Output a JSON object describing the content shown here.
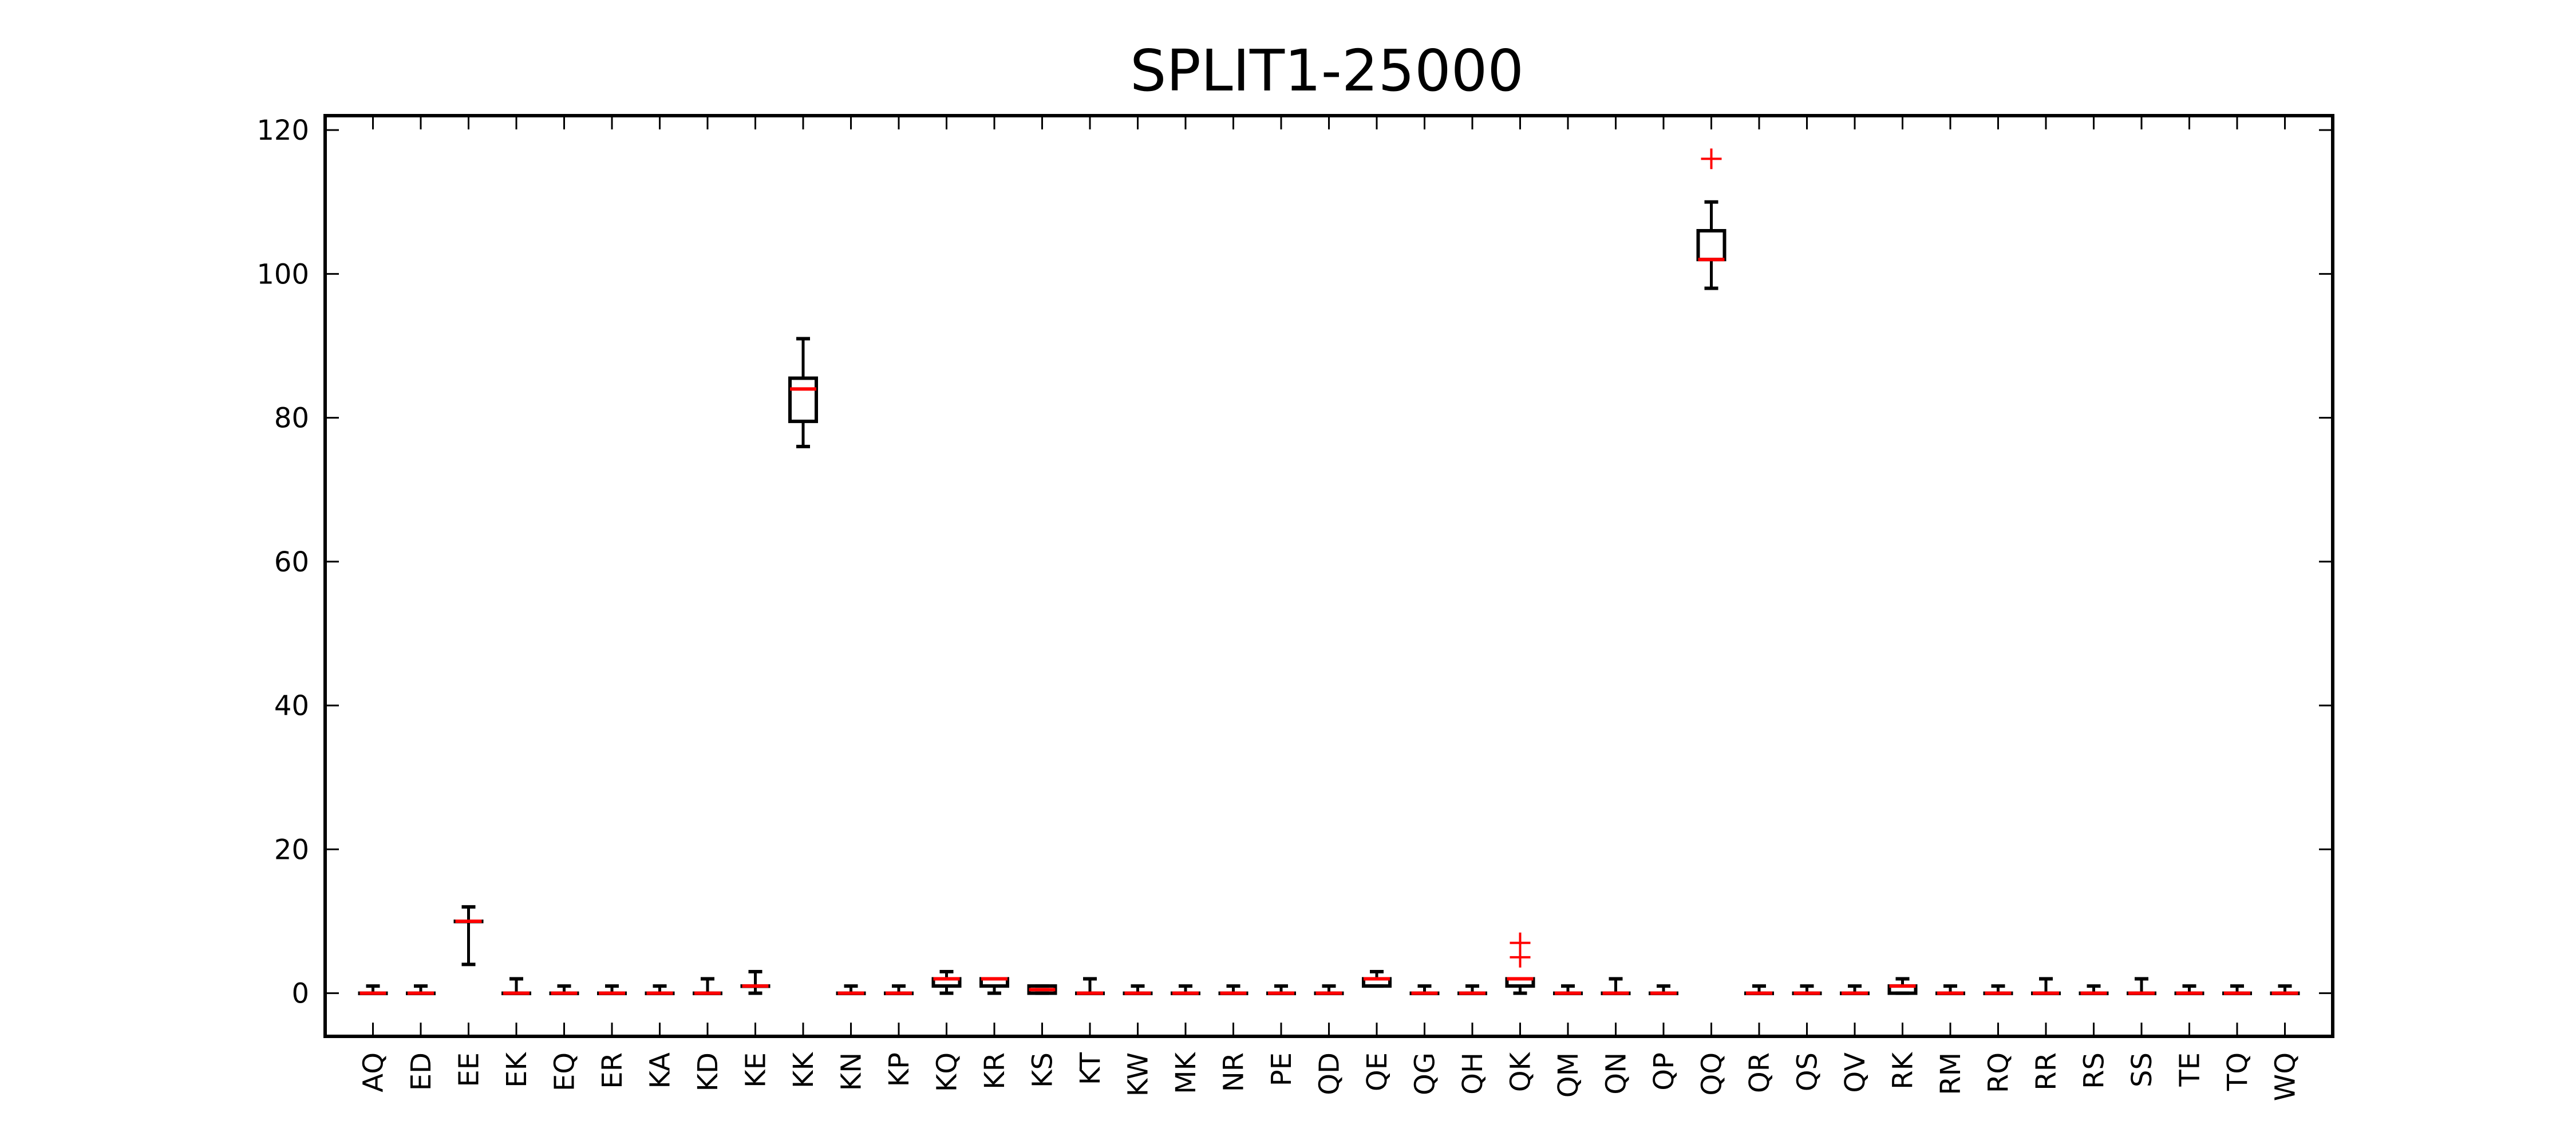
{
  "chart_data": {
    "type": "box",
    "title": "SPLIT1-25000",
    "xlabel": "",
    "ylabel": "",
    "ylim": [
      -6,
      122
    ],
    "yticks": [
      0,
      20,
      40,
      60,
      80,
      100,
      120
    ],
    "ytick_labels": [
      "0",
      "20",
      "40",
      "60",
      "80",
      "100",
      "120"
    ],
    "grid": false,
    "legend": "none",
    "colors": {
      "box": "#000000",
      "median": "#ff0000",
      "outlier": "#ff0000"
    },
    "categories": [
      "AQ",
      "ED",
      "EE",
      "EK",
      "EQ",
      "ER",
      "KA",
      "KD",
      "KE",
      "KK",
      "KN",
      "KP",
      "KQ",
      "KR",
      "KS",
      "KT",
      "KW",
      "MK",
      "NR",
      "PE",
      "QD",
      "QE",
      "QG",
      "QH",
      "QK",
      "QM",
      "QN",
      "QP",
      "QQ",
      "QR",
      "QS",
      "QV",
      "RK",
      "RM",
      "RQ",
      "RR",
      "RS",
      "SS",
      "TE",
      "TQ",
      "WQ"
    ],
    "boxes": [
      {
        "label": "AQ",
        "whislo": 0,
        "q1": 0,
        "med": 0,
        "q3": 0,
        "whishi": 1,
        "fliers": []
      },
      {
        "label": "ED",
        "whislo": 0,
        "q1": 0,
        "med": 0,
        "q3": 0,
        "whishi": 1,
        "fliers": []
      },
      {
        "label": "EE",
        "whislo": 4,
        "q1": 10,
        "med": 10,
        "q3": 10,
        "whishi": 12,
        "fliers": []
      },
      {
        "label": "EK",
        "whislo": 0,
        "q1": 0,
        "med": 0,
        "q3": 0,
        "whishi": 2,
        "fliers": []
      },
      {
        "label": "EQ",
        "whislo": 0,
        "q1": 0,
        "med": 0,
        "q3": 0,
        "whishi": 1,
        "fliers": []
      },
      {
        "label": "ER",
        "whislo": 0,
        "q1": 0,
        "med": 0,
        "q3": 0,
        "whishi": 1,
        "fliers": []
      },
      {
        "label": "KA",
        "whislo": 0,
        "q1": 0,
        "med": 0,
        "q3": 0,
        "whishi": 1,
        "fliers": []
      },
      {
        "label": "KD",
        "whislo": 0,
        "q1": 0,
        "med": 0,
        "q3": 0,
        "whishi": 2,
        "fliers": []
      },
      {
        "label": "KE",
        "whislo": 0,
        "q1": 1,
        "med": 1,
        "q3": 1,
        "whishi": 3,
        "fliers": []
      },
      {
        "label": "KK",
        "whislo": 76,
        "q1": 79.5,
        "med": 84,
        "q3": 85.5,
        "whishi": 91,
        "fliers": []
      },
      {
        "label": "KN",
        "whislo": 0,
        "q1": 0,
        "med": 0,
        "q3": 0,
        "whishi": 1,
        "fliers": []
      },
      {
        "label": "KP",
        "whislo": 0,
        "q1": 0,
        "med": 0,
        "q3": 0,
        "whishi": 1,
        "fliers": []
      },
      {
        "label": "KQ",
        "whislo": 0,
        "q1": 1,
        "med": 2,
        "q3": 2,
        "whishi": 3,
        "fliers": []
      },
      {
        "label": "KR",
        "whislo": 0,
        "q1": 1,
        "med": 2,
        "q3": 2,
        "whishi": 2,
        "fliers": []
      },
      {
        "label": "KS",
        "whislo": 0,
        "q1": 0,
        "med": 0.5,
        "q3": 1,
        "whishi": 1,
        "fliers": []
      },
      {
        "label": "KT",
        "whislo": 0,
        "q1": 0,
        "med": 0,
        "q3": 0,
        "whishi": 2,
        "fliers": []
      },
      {
        "label": "KW",
        "whislo": 0,
        "q1": 0,
        "med": 0,
        "q3": 0,
        "whishi": 1,
        "fliers": []
      },
      {
        "label": "MK",
        "whislo": 0,
        "q1": 0,
        "med": 0,
        "q3": 0,
        "whishi": 1,
        "fliers": []
      },
      {
        "label": "NR",
        "whislo": 0,
        "q1": 0,
        "med": 0,
        "q3": 0,
        "whishi": 1,
        "fliers": []
      },
      {
        "label": "PE",
        "whislo": 0,
        "q1": 0,
        "med": 0,
        "q3": 0,
        "whishi": 1,
        "fliers": []
      },
      {
        "label": "QD",
        "whislo": 0,
        "q1": 0,
        "med": 0,
        "q3": 0,
        "whishi": 1,
        "fliers": []
      },
      {
        "label": "QE",
        "whislo": 1,
        "q1": 1,
        "med": 2,
        "q3": 2,
        "whishi": 3,
        "fliers": []
      },
      {
        "label": "QG",
        "whislo": 0,
        "q1": 0,
        "med": 0,
        "q3": 0,
        "whishi": 1,
        "fliers": []
      },
      {
        "label": "QH",
        "whislo": 0,
        "q1": 0,
        "med": 0,
        "q3": 0,
        "whishi": 1,
        "fliers": []
      },
      {
        "label": "QK",
        "whislo": 0,
        "q1": 1,
        "med": 2,
        "q3": 2,
        "whishi": 2,
        "fliers": [
          5,
          7
        ]
      },
      {
        "label": "QM",
        "whislo": 0,
        "q1": 0,
        "med": 0,
        "q3": 0,
        "whishi": 1,
        "fliers": []
      },
      {
        "label": "QN",
        "whislo": 0,
        "q1": 0,
        "med": 0,
        "q3": 0,
        "whishi": 2,
        "fliers": []
      },
      {
        "label": "QP",
        "whislo": 0,
        "q1": 0,
        "med": 0,
        "q3": 0,
        "whishi": 1,
        "fliers": []
      },
      {
        "label": "QQ",
        "whislo": 98,
        "q1": 102,
        "med": 102,
        "q3": 106,
        "whishi": 110,
        "fliers": [
          116
        ]
      },
      {
        "label": "QR",
        "whislo": 0,
        "q1": 0,
        "med": 0,
        "q3": 0,
        "whishi": 1,
        "fliers": []
      },
      {
        "label": "QS",
        "whislo": 0,
        "q1": 0,
        "med": 0,
        "q3": 0,
        "whishi": 1,
        "fliers": []
      },
      {
        "label": "QV",
        "whislo": 0,
        "q1": 0,
        "med": 0,
        "q3": 0,
        "whishi": 1,
        "fliers": []
      },
      {
        "label": "RK",
        "whislo": 0,
        "q1": 0,
        "med": 1,
        "q3": 1,
        "whishi": 2,
        "fliers": []
      },
      {
        "label": "RM",
        "whislo": 0,
        "q1": 0,
        "med": 0,
        "q3": 0,
        "whishi": 1,
        "fliers": []
      },
      {
        "label": "RQ",
        "whislo": 0,
        "q1": 0,
        "med": 0,
        "q3": 0,
        "whishi": 1,
        "fliers": []
      },
      {
        "label": "RR",
        "whislo": 0,
        "q1": 0,
        "med": 0,
        "q3": 0,
        "whishi": 2,
        "fliers": []
      },
      {
        "label": "RS",
        "whislo": 0,
        "q1": 0,
        "med": 0,
        "q3": 0,
        "whishi": 1,
        "fliers": []
      },
      {
        "label": "SS",
        "whislo": 0,
        "q1": 0,
        "med": 0,
        "q3": 0,
        "whishi": 2,
        "fliers": []
      },
      {
        "label": "TE",
        "whislo": 0,
        "q1": 0,
        "med": 0,
        "q3": 0,
        "whishi": 1,
        "fliers": []
      },
      {
        "label": "TQ",
        "whislo": 0,
        "q1": 0,
        "med": 0,
        "q3": 0,
        "whishi": 1,
        "fliers": []
      },
      {
        "label": "WQ",
        "whislo": 0,
        "q1": 0,
        "med": 0,
        "q3": 0,
        "whishi": 1,
        "fliers": []
      }
    ]
  }
}
